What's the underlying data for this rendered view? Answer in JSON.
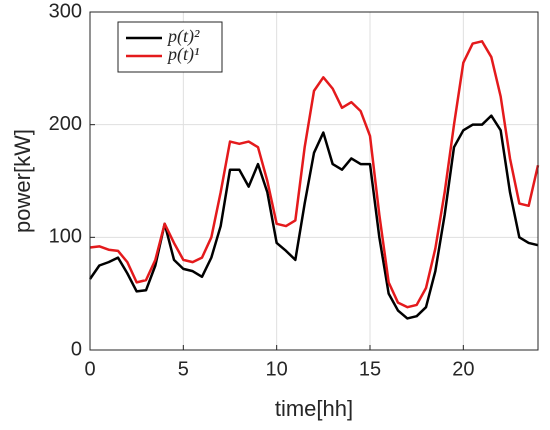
{
  "chart_data": {
    "type": "line",
    "xlabel": "time[hh]",
    "ylabel": "power[kW]",
    "x": [
      0,
      0.5,
      1,
      1.5,
      2,
      2.5,
      3,
      3.5,
      4,
      4.5,
      5,
      5.5,
      6,
      6.5,
      7,
      7.5,
      8,
      8.5,
      9,
      9.5,
      10,
      10.5,
      11,
      11.5,
      12,
      12.5,
      13,
      13.5,
      14,
      14.5,
      15,
      15.5,
      16,
      16.5,
      17,
      17.5,
      18,
      18.5,
      19,
      19.5,
      20,
      20.5,
      21,
      21.5,
      22,
      22.5,
      23,
      23.5,
      24
    ],
    "series": [
      {
        "name": "p(t)²",
        "color": "#000000",
        "values": [
          63,
          75,
          78,
          82,
          68,
          52,
          53,
          75,
          112,
          80,
          72,
          70,
          65,
          82,
          110,
          160,
          160,
          145,
          165,
          140,
          95,
          88,
          80,
          130,
          175,
          193,
          165,
          160,
          170,
          165,
          165,
          100,
          50,
          35,
          28,
          30,
          38,
          70,
          120,
          180,
          195,
          200,
          200,
          208,
          195,
          140,
          100,
          95,
          93
        ]
      },
      {
        "name": "p(t)¹",
        "color": "#e41a1c",
        "values": [
          91,
          92,
          89,
          88,
          78,
          60,
          62,
          80,
          112,
          95,
          80,
          78,
          82,
          100,
          140,
          185,
          183,
          185,
          180,
          150,
          112,
          110,
          115,
          180,
          230,
          242,
          232,
          215,
          220,
          212,
          190,
          120,
          60,
          42,
          38,
          40,
          55,
          90,
          140,
          200,
          255,
          272,
          274,
          260,
          225,
          170,
          130,
          128,
          164
        ]
      }
    ],
    "xlim": [
      0,
      24
    ],
    "xticks": [
      0,
      5,
      10,
      15,
      20
    ],
    "ylim": [
      0,
      300
    ],
    "yticks": [
      0,
      100,
      200,
      300
    ],
    "grid": true,
    "legend": "upper left"
  }
}
